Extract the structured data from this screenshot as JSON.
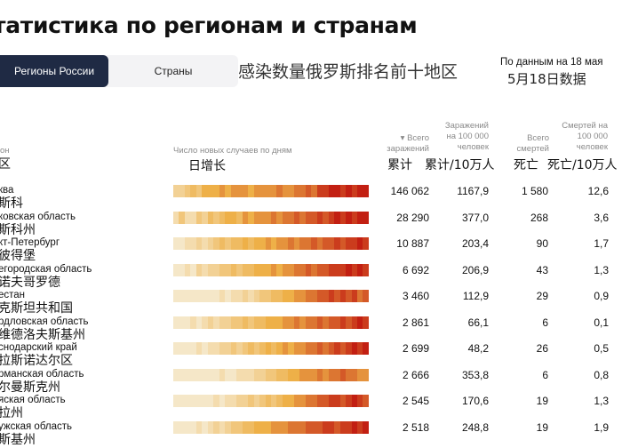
{
  "title": "татистика по регионам и странам",
  "tabs": [
    {
      "label": "Регионы России",
      "active": true
    },
    {
      "label": "Страны",
      "active": false
    }
  ],
  "heading_cn": "感染数量俄罗斯排名前十地区",
  "date_ru": "По данным на 18 мая",
  "date_cn": "5月18日数据",
  "columns": {
    "region": {
      "ru": "он",
      "cn": "区"
    },
    "daily": {
      "ru": "Число новых случаев по дням",
      "cn": "日增长"
    },
    "total": {
      "ru": "▾ Всего заражений",
      "cn": "累计"
    },
    "per100k": {
      "ru": "Заражений на 100 000 человек",
      "cn": "累计/10万人"
    },
    "deaths": {
      "ru": "Всего смертей",
      "cn": "死亡"
    },
    "deaths100k": {
      "ru": "Смертей на 100 000 человек",
      "cn": "死亡/10万人"
    }
  },
  "colors": {
    "accent_dark": "#1f2a44",
    "heat_low": "#f5e7c8",
    "heat_high": "#c21f12"
  },
  "rows": [
    {
      "ru": "ква",
      "cn": "斯科",
      "total": "146 062",
      "per100k": "1167,9",
      "deaths": "1 580",
      "deaths100k": "12,6",
      "heat": [
        0.2,
        0.2,
        0.3,
        0.4,
        0.3,
        0.5,
        0.5,
        0.5,
        0.6,
        0.5,
        0.6,
        0.6,
        0.6,
        0.5,
        0.6,
        0.6,
        0.6,
        0.6,
        0.7,
        0.6,
        0.6,
        0.7,
        0.7,
        0.8,
        0.7,
        0.9,
        0.9,
        1,
        1,
        0.9,
        1,
        0.9,
        1,
        1
      ]
    },
    {
      "ru": "ковская область",
      "cn": "斯科州",
      "total": "28 290",
      "per100k": "377,0",
      "deaths": "268",
      "deaths100k": "3,6",
      "heat": [
        0.1,
        0.3,
        0.1,
        0.1,
        0.3,
        0.2,
        0.4,
        0.3,
        0.4,
        0.5,
        0.5,
        0.4,
        0.6,
        0.5,
        0.6,
        0.6,
        0.6,
        0.7,
        0.6,
        0.7,
        0.7,
        0.8,
        0.7,
        0.8,
        0.8,
        0.9,
        0.8,
        0.9,
        1,
        0.9,
        1,
        0.9,
        1,
        1
      ]
    },
    {
      "ru": "кт-Петербург",
      "cn": "彼得堡",
      "total": "10 887",
      "per100k": "203,4",
      "deaths": "90",
      "deaths100k": "1,7",
      "heat": [
        0,
        0,
        0.1,
        0.1,
        0.2,
        0.1,
        0.2,
        0.3,
        0.4,
        0.3,
        0.4,
        0.4,
        0.5,
        0.4,
        0.5,
        0.5,
        0.6,
        0.5,
        0.6,
        0.6,
        0.7,
        0.6,
        0.7,
        0.7,
        0.8,
        0.7,
        0.8,
        0.8,
        0.9,
        0.8,
        0.9,
        0.9,
        1,
        0.9
      ]
    },
    {
      "ru": "егородская область",
      "cn": "诺夫哥罗德",
      "total": "6 692",
      "per100k": "206,9",
      "deaths": "43",
      "deaths100k": "1,3",
      "heat": [
        0,
        0,
        0.1,
        0,
        0.2,
        0.1,
        0.2,
        0.2,
        0.3,
        0.3,
        0.4,
        0.3,
        0.4,
        0.4,
        0.5,
        0.5,
        0.5,
        0.6,
        0.5,
        0.6,
        0.6,
        0.7,
        0.7,
        0.8,
        0.7,
        0.8,
        0.8,
        0.9,
        0.9,
        0.9,
        1,
        0.9,
        1,
        0.9
      ]
    },
    {
      "ru": "естан",
      "cn": "克斯坦共和国",
      "total": "3 460",
      "per100k": "112,9",
      "deaths": "29",
      "deaths100k": "0,9",
      "heat": [
        0,
        0,
        0,
        0,
        0,
        0,
        0,
        0,
        0.1,
        0,
        0.1,
        0.1,
        0.2,
        0.1,
        0.2,
        0.3,
        0.3,
        0.4,
        0.4,
        0.5,
        0.5,
        0.6,
        0.6,
        0.7,
        0.7,
        0.8,
        0.8,
        0.9,
        0.8,
        0.9,
        0.8,
        0.9,
        0.7,
        0.8
      ]
    },
    {
      "ru": "рдловская область",
      "cn": "维德洛夫斯基州",
      "total": "2 861",
      "per100k": "66,1",
      "deaths": "6",
      "deaths100k": "0,1",
      "heat": [
        0,
        0,
        0,
        0.1,
        0,
        0.1,
        0.2,
        0.1,
        0.2,
        0.2,
        0.3,
        0.3,
        0.4,
        0.3,
        0.4,
        0.4,
        0.5,
        0.5,
        0.5,
        0.6,
        0.6,
        0.7,
        0.6,
        0.7,
        0.7,
        0.8,
        0.7,
        0.8,
        0.8,
        0.9,
        0.8,
        0.9,
        1,
        0.9
      ]
    },
    {
      "ru": "снодарский край",
      "cn": "拉斯诺达尔区",
      "total": "2 699",
      "per100k": "48,2",
      "deaths": "26",
      "deaths100k": "0,5",
      "heat": [
        0,
        0,
        0,
        0,
        0.1,
        0,
        0.1,
        0.1,
        0.2,
        0.2,
        0.3,
        0.2,
        0.3,
        0.4,
        0.3,
        0.4,
        0.5,
        0.4,
        0.5,
        0.6,
        0.5,
        0.6,
        0.6,
        0.7,
        0.7,
        0.8,
        0.7,
        0.8,
        0.9,
        0.8,
        0.9,
        1,
        0.9,
        1
      ]
    },
    {
      "ru": "рманская область",
      "cn": "尔曼斯克州",
      "total": "2 666",
      "per100k": "353,8",
      "deaths": "6",
      "deaths100k": "0,8",
      "heat": [
        0,
        0,
        0,
        0,
        0,
        0,
        0,
        0,
        0.1,
        0,
        0,
        0.1,
        0.1,
        0.1,
        0.2,
        0.2,
        0.3,
        0.3,
        0.4,
        0.4,
        0.5,
        0.5,
        0.6,
        0.6,
        0.6,
        0.7,
        0.6,
        0.7,
        0.7,
        0.8,
        0.7,
        0.7,
        0.6,
        0.6
      ]
    },
    {
      "ru": "яская область",
      "cn": "拉州",
      "total": "2 545",
      "per100k": "170,6",
      "deaths": "19",
      "deaths100k": "1,3",
      "heat": [
        0,
        0,
        0,
        0,
        0,
        0,
        0,
        0.1,
        0,
        0.1,
        0.1,
        0.2,
        0.2,
        0.3,
        0.2,
        0.3,
        0.4,
        0.3,
        0.4,
        0.5,
        0.5,
        0.6,
        0.6,
        0.7,
        0.7,
        0.8,
        0.8,
        0.9,
        0.9,
        0.8,
        0.9,
        1,
        0.9,
        0.8
      ]
    },
    {
      "ru": "ужская область",
      "cn": "斯基州",
      "total": "2 518",
      "per100k": "248,8",
      "deaths": "19",
      "deaths100k": "1,9",
      "heat": [
        0,
        0,
        0,
        0,
        0.1,
        0,
        0.1,
        0.2,
        0.1,
        0.2,
        0.3,
        0.3,
        0.4,
        0.4,
        0.5,
        0.5,
        0.5,
        0.6,
        0.6,
        0.6,
        0.7,
        0.7,
        0.7,
        0.8,
        0.8,
        0.8,
        0.9,
        0.9,
        0.8,
        0.9,
        0.9,
        1,
        0.9,
        1
      ]
    }
  ]
}
